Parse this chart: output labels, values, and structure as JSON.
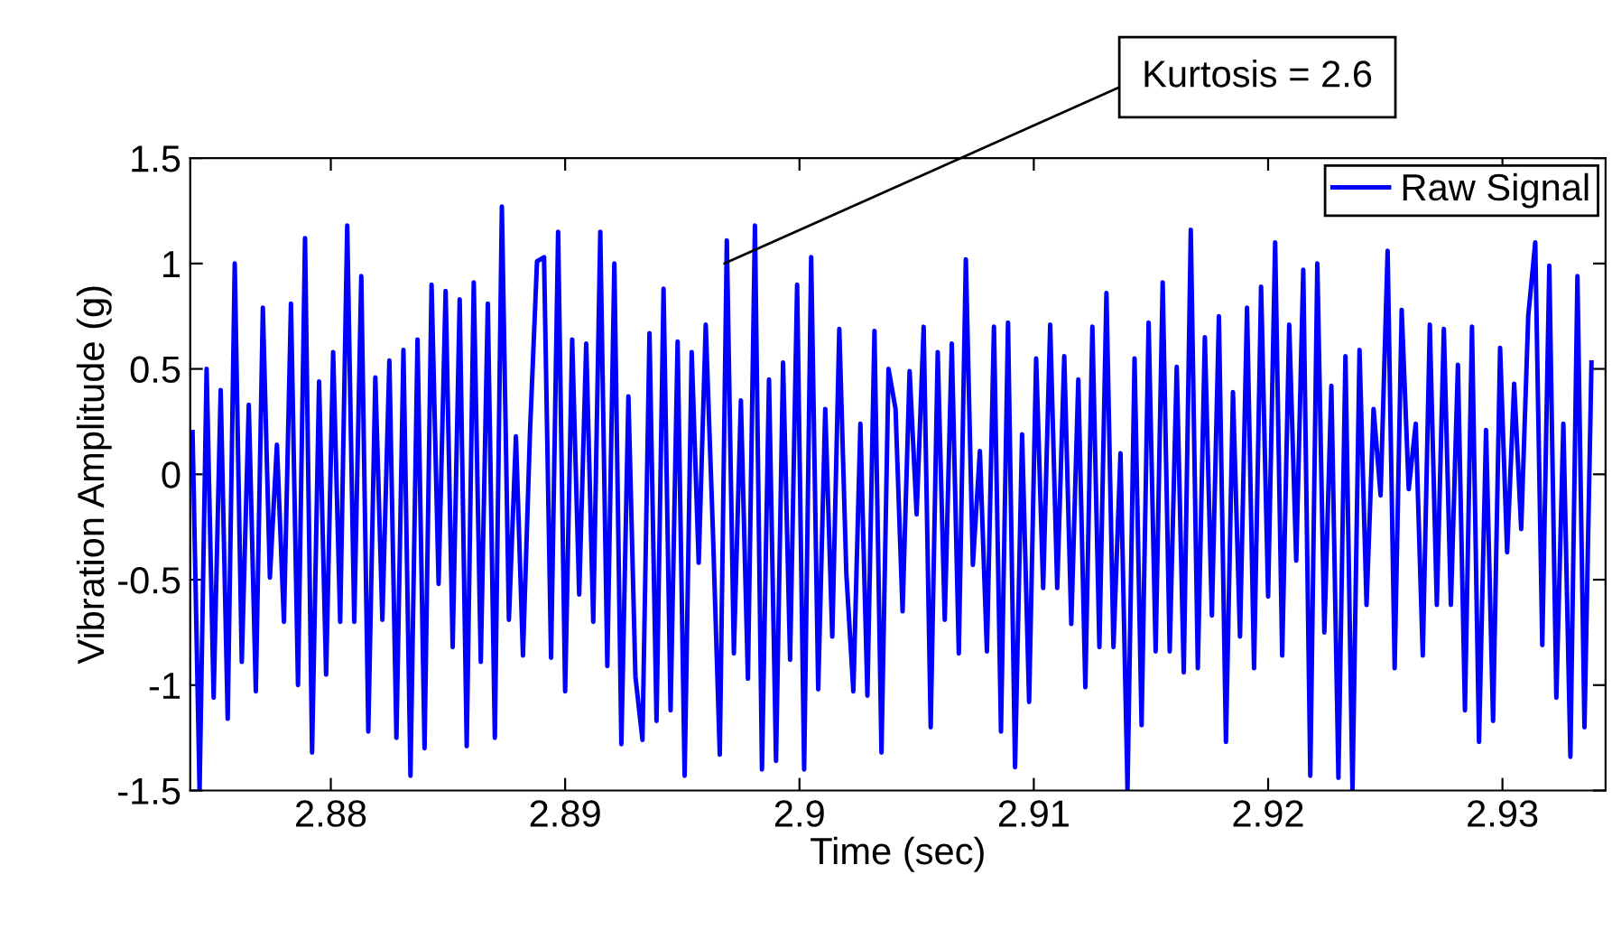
{
  "chart_data": {
    "type": "line",
    "xlabel": "Time (sec)",
    "ylabel": "Vibration Amplitude (g)",
    "xlim": [
      2.874,
      2.9344
    ],
    "ylim": [
      -1.5,
      1.5
    ],
    "xticks": [
      2.88,
      2.89,
      2.9,
      2.91,
      2.92,
      2.93
    ],
    "yticks": [
      -1.5,
      -1,
      -0.5,
      0,
      0.5,
      1,
      1.5
    ],
    "grid": false,
    "legend": "top right",
    "marker": "none",
    "line_style": "solid",
    "annotations": [
      {
        "text": "Kurtosis = 2.6",
        "x": 2.8968,
        "y": 1.0
      }
    ],
    "x": [
      2.8741,
      2.8744,
      2.8747,
      2.875,
      2.8753,
      2.8756,
      2.8759,
      2.8762,
      2.8765,
      2.8768,
      2.8771,
      2.8774,
      2.8777,
      2.878,
      2.8783,
      2.8786,
      2.8789,
      2.8792,
      2.8795,
      2.8798,
      2.8801,
      2.8804,
      2.8807,
      2.881,
      2.8813,
      2.8816,
      2.8819,
      2.8822,
      2.8825,
      2.8828,
      2.8831,
      2.8834,
      2.8837,
      2.884,
      2.8843,
      2.8846,
      2.8849,
      2.8852,
      2.8855,
      2.8858,
      2.8861,
      2.8864,
      2.8867,
      2.887,
      2.8873,
      2.8876,
      2.8879,
      2.8882,
      2.8885,
      2.8888,
      2.8891,
      2.8894,
      2.8897,
      2.89,
      2.8903,
      2.8906,
      2.8909,
      2.8912,
      2.8915,
      2.8918,
      2.8921,
      2.8924,
      2.8927,
      2.893,
      2.8933,
      2.8936,
      2.8939,
      2.8942,
      2.8945,
      2.8948,
      2.8951,
      2.8954,
      2.8957,
      2.896,
      2.8963,
      2.8966,
      2.8969,
      2.8972,
      2.8975,
      2.8978,
      2.8981,
      2.8984,
      2.8987,
      2.899,
      2.8993,
      2.8996,
      2.8999,
      2.9002,
      2.9005,
      2.9008,
      2.9011,
      2.9014,
      2.9017,
      2.902,
      2.9023,
      2.9026,
      2.9029,
      2.9032,
      2.9035,
      2.9038,
      2.9041,
      2.9044,
      2.9047,
      2.905,
      2.9053,
      2.9056,
      2.9059,
      2.9062,
      2.9065,
      2.9068,
      2.9071,
      2.9074,
      2.9077,
      2.908,
      2.9083,
      2.9086,
      2.9089,
      2.9092,
      2.9095,
      2.9098,
      2.9101,
      2.9104,
      2.9107,
      2.911,
      2.9113,
      2.9116,
      2.9119,
      2.9122,
      2.9125,
      2.9128,
      2.9131,
      2.9134,
      2.9137,
      2.914,
      2.9143,
      2.9146,
      2.9149,
      2.9152,
      2.9155,
      2.9158,
      2.9161,
      2.9164,
      2.9167,
      2.917,
      2.9173,
      2.9176,
      2.9179,
      2.9182,
      2.9185,
      2.9188,
      2.9191,
      2.9194,
      2.9197,
      2.92,
      2.9203,
      2.9206,
      2.9209,
      2.9212,
      2.9215,
      2.9218,
      2.9221,
      2.9224,
      2.9227,
      2.923,
      2.9233,
      2.9236,
      2.9239,
      2.9242,
      2.9245,
      2.9248,
      2.9251,
      2.9254,
      2.9257,
      2.926,
      2.9263,
      2.9266,
      2.9269,
      2.9272,
      2.9275,
      2.9278,
      2.9281,
      2.9284,
      2.9287,
      2.929,
      2.9293,
      2.9296,
      2.9299,
      2.9302,
      2.9305,
      2.9308,
      2.9311,
      2.9314,
      2.9317,
      2.932,
      2.9323,
      2.9326,
      2.9329,
      2.9332,
      2.9335,
      2.9338
    ],
    "series": [
      {
        "name": "Raw Signal",
        "color": "#0000ff",
        "values": [
          0.2,
          -1.5,
          0.5,
          -1.06,
          0.4,
          -1.16,
          1.0,
          -0.89,
          0.33,
          -1.03,
          0.79,
          -0.49,
          0.14,
          -0.7,
          0.81,
          -1.0,
          1.12,
          -1.32,
          0.44,
          -0.95,
          0.58,
          -0.7,
          1.18,
          -0.7,
          0.94,
          -1.22,
          0.46,
          -0.69,
          0.54,
          -1.25,
          0.59,
          -1.43,
          0.64,
          -1.3,
          0.9,
          -0.52,
          0.87,
          -0.82,
          0.83,
          -1.29,
          0.91,
          -0.89,
          0.81,
          -1.25,
          1.27,
          -0.69,
          0.18,
          -0.86,
          0.2,
          1.01,
          1.03,
          -0.87,
          1.15,
          -1.03,
          0.64,
          -0.57,
          0.62,
          -0.7,
          1.15,
          -0.91,
          1.0,
          -1.28,
          0.37,
          -0.96,
          -1.26,
          0.67,
          -1.17,
          0.88,
          -1.12,
          0.63,
          -1.43,
          0.58,
          -0.42,
          0.71,
          -0.25,
          -1.33,
          1.11,
          -0.85,
          0.35,
          -0.97,
          1.18,
          -1.4,
          0.45,
          -1.36,
          0.53,
          -0.88,
          0.9,
          -1.4,
          1.03,
          -1.02,
          0.31,
          -0.77,
          0.69,
          -0.47,
          -1.03,
          0.24,
          -1.05,
          0.68,
          -1.32,
          0.5,
          0.31,
          -0.65,
          0.49,
          -0.19,
          0.7,
          -1.2,
          0.58,
          -0.69,
          0.62,
          -0.85,
          1.02,
          -0.43,
          0.11,
          -0.84,
          0.7,
          -1.22,
          0.72,
          -1.39,
          0.19,
          -1.08,
          0.55,
          -0.54,
          0.71,
          -0.54,
          0.56,
          -0.71,
          0.45,
          -1.01,
          0.7,
          -0.82,
          0.86,
          -0.82,
          0.1,
          -1.5,
          0.55,
          -1.19,
          0.72,
          -0.84,
          0.91,
          -0.84,
          0.51,
          -0.94,
          1.16,
          -0.92,
          0.65,
          -0.67,
          0.75,
          -1.27,
          0.39,
          -0.77,
          0.79,
          -0.92,
          0.89,
          -0.58,
          1.1,
          -0.86,
          0.71,
          -0.41,
          0.97,
          -1.43,
          1.0,
          -0.75,
          0.42,
          -1.44,
          0.56,
          -1.5,
          0.59,
          -0.62,
          0.31,
          -0.1,
          1.06,
          -0.92,
          0.78,
          -0.07,
          0.24,
          -0.86,
          0.71,
          -0.62,
          0.69,
          -0.62,
          0.52,
          -1.12,
          0.7,
          -1.27,
          0.21,
          -1.17,
          0.6,
          -0.37,
          0.43,
          -0.26,
          0.75,
          1.1,
          -0.81,
          0.99,
          -1.06,
          0.24,
          -1.34,
          0.94,
          -1.2,
          0.53
        ]
      }
    ]
  }
}
